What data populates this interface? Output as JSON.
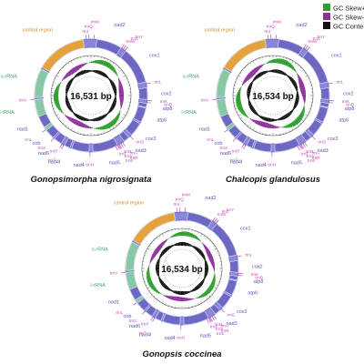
{
  "legend": {
    "items": [
      {
        "label": "GC Skew+",
        "color": "#2ca02c"
      },
      {
        "label": "GC Skew-",
        "color": "#8e2f9c"
      },
      {
        "label": "GC Content",
        "color": "#111111"
      }
    ]
  },
  "colors": {
    "gene_ring": "#8a86d8",
    "gene_ring_dark": "#6c68c4",
    "control_region": "#e3a23a",
    "rrna": "#86c9a4",
    "gene_label": "#5b57b8",
    "trna_label": "#c54bbf",
    "rrna_label": "#3fa66a",
    "control_label": "#e08a1c",
    "skew_pos": "#2ca02c",
    "skew_neg": "#8e2f9c",
    "gc": "#111111"
  },
  "maps": [
    {
      "species": "Gonopsimorpha nigrosignata",
      "length": "16,531 bp",
      "labels": {
        "control_region": "control region",
        "s_rrna": "s-rRNA",
        "l_rrna": "l-rRNA",
        "nad2": "nad2",
        "cox1": "cox1",
        "cox2": "cox2",
        "atp8": "atp8",
        "atp6": "atp6",
        "cox3": "cox3",
        "nad3": "nad3",
        "nad5": "nad5",
        "nad4": "nad4",
        "nad4l": "nad4l",
        "nad6": "nad6",
        "cob": "cob",
        "nad1": "nad1",
        "trnM": "trnM",
        "trnI": "trnI",
        "trnQ": "trnQ",
        "trnW": "trnW",
        "trnC": "trnC",
        "trnY": "trnY",
        "trnL": "trnL",
        "trnK": "trnK",
        "trnD": "trnD",
        "trnG": "trnG",
        "trnA": "trnA",
        "trnR": "trnR",
        "trnN": "trnN",
        "trnS": "trnS",
        "trnE": "trnE",
        "trnF": "trnF",
        "trnH": "trnH",
        "trnT": "trnT",
        "trnP": "trnP",
        "trnV": "trnV"
      }
    },
    {
      "species": "Chalcopis glandulosus",
      "length": "16,534 bp",
      "labels": {
        "control_region": "control region",
        "s_rrna": "s-rRNA",
        "l_rrna": "l-rRNA",
        "nad2": "nad2",
        "cox1": "cox1",
        "cox2": "cox2",
        "atp8": "atp8",
        "atp6": "atp6",
        "cox3": "cox3",
        "nad3": "nad3",
        "nad5": "nad5",
        "nad4": "nad4",
        "nad4l": "nad4l",
        "nad6": "nad6",
        "cob": "cob",
        "nad1": "nad1",
        "trnM": "trnM",
        "trnI": "trnI",
        "trnQ": "trnQ",
        "trnW": "trnW",
        "trnC": "trnC",
        "trnY": "trnY",
        "trnL": "trnL",
        "trnK": "trnK",
        "trnD": "trnD",
        "trnG": "trnG",
        "trnA": "trnA",
        "trnR": "trnR",
        "trnN": "trnN",
        "trnS": "trnS",
        "trnE": "trnE",
        "trnF": "trnF",
        "trnH": "trnH",
        "trnT": "trnT",
        "trnP": "trnP",
        "trnV": "trnV"
      }
    },
    {
      "species": "Gonopsis coccinea",
      "length": "16,534 bp",
      "labels": {
        "control_region": "control region",
        "s_rrna": "s-rRNA",
        "l_rrna": "l-rRNA",
        "nad2": "nad2",
        "cox1": "cox1",
        "cox2": "cox2",
        "atp8": "atp8",
        "atp6": "atp6",
        "cox3": "cox3",
        "nad3": "nad3",
        "nad5": "nad5",
        "nad4": "nad4",
        "nad4l": "nad4l",
        "nad6": "nad6",
        "cob": "cob",
        "nad1": "nad1",
        "trnM": "trnM",
        "trnI": "trnI",
        "trnQ": "trnQ",
        "trnW": "trnW",
        "trnC": "trnC",
        "trnY": "trnY",
        "trnL": "trnL",
        "trnK": "trnK",
        "trnD": "trnD",
        "trnG": "trnG",
        "trnA": "trnA",
        "trnR": "trnR",
        "trnN": "trnN",
        "trnS": "trnS",
        "trnE": "trnE",
        "trnF": "trnF",
        "trnH": "trnH",
        "trnT": "trnT",
        "trnP": "trnP",
        "trnV": "trnV"
      }
    }
  ]
}
